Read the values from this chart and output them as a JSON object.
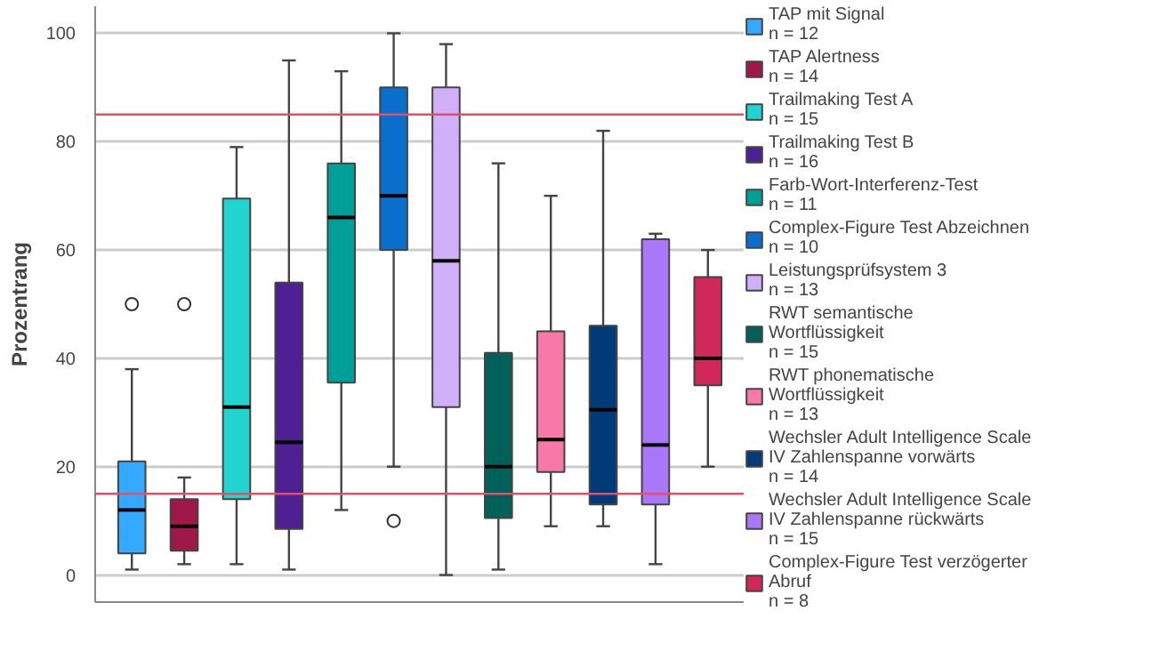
{
  "chart_data": {
    "type": "box",
    "ylabel": "Prozentrang",
    "categories": [
      null,
      null,
      null,
      null,
      null,
      null,
      null,
      null,
      null,
      null,
      null,
      null
    ],
    "series": [
      {
        "name": "TAP mit Signal\nn = 12",
        "color": "#33aaff",
        "boxes": [
          {
            "low": 1,
            "q1": 4,
            "median": 12,
            "q3": 21,
            "high": 38,
            "outliers": [
              50
            ]
          },
          null,
          null,
          null,
          null,
          null,
          null,
          null,
          null,
          null,
          null,
          null
        ]
      },
      {
        "name": "TAP Alertness\nn = 14",
        "color": "#a0184a",
        "boxes": [
          null,
          {
            "low": 2,
            "q1": 4.5,
            "median": 9,
            "q3": 14,
            "high": 18,
            "outliers": [
              50
            ]
          },
          null,
          null,
          null,
          null,
          null,
          null,
          null,
          null,
          null,
          null
        ]
      },
      {
        "name": "Trailmaking Test A\nn = 15",
        "color": "#22d4d0",
        "boxes": [
          null,
          null,
          {
            "low": 2,
            "q1": 14,
            "median": 31,
            "q3": 69.5,
            "high": 79
          },
          null,
          null,
          null,
          null,
          null,
          null,
          null,
          null,
          null
        ]
      },
      {
        "name": "Trailmaking Test B\nn = 16",
        "color": "#4f1f94",
        "boxes": [
          null,
          null,
          null,
          {
            "low": 1,
            "q1": 8.5,
            "median": 24.5,
            "q3": 54,
            "high": 95
          },
          null,
          null,
          null,
          null,
          null,
          null,
          null,
          null
        ]
      },
      {
        "name": "Farb-Wort-Interferenz-Test\nn = 11",
        "color": "#00a099",
        "boxes": [
          null,
          null,
          null,
          null,
          {
            "low": 12,
            "q1": 35.5,
            "median": 66,
            "q3": 76,
            "high": 93
          },
          null,
          null,
          null,
          null,
          null,
          null,
          null
        ]
      },
      {
        "name": "Complex-Figure Test Abzeichnen\nn = 10",
        "color": "#0a6fcc",
        "boxes": [
          null,
          null,
          null,
          null,
          null,
          {
            "low": 20,
            "q1": 60,
            "median": 70,
            "q3": 90,
            "high": 100,
            "outliers": [
              10
            ]
          },
          null,
          null,
          null,
          null,
          null,
          null
        ]
      },
      {
        "name": "Leistungsprüfsystem 3\nn = 13",
        "color": "#d0b0f8",
        "boxes": [
          null,
          null,
          null,
          null,
          null,
          null,
          {
            "low": 0,
            "q1": 31,
            "median": 58,
            "q3": 90,
            "high": 98
          },
          null,
          null,
          null,
          null,
          null
        ]
      },
      {
        "name": "RWT semantische\nWortflüssigkeit\nn = 15",
        "color": "#00605a",
        "boxes": [
          null,
          null,
          null,
          null,
          null,
          null,
          null,
          {
            "low": 1,
            "q1": 10.5,
            "median": 20,
            "q3": 41,
            "high": 76
          },
          null,
          null,
          null,
          null
        ]
      },
      {
        "name": "RWT phonematische\nWortflüssigkeit\nn = 13",
        "color": "#f878a8",
        "boxes": [
          null,
          null,
          null,
          null,
          null,
          null,
          null,
          null,
          {
            "low": 9,
            "q1": 19,
            "median": 25,
            "q3": 45,
            "high": 70
          },
          null,
          null,
          null
        ]
      },
      {
        "name": "Wechsler Adult Intelligence Scale\nIV Zahlenspanne vorwärts\nn = 14",
        "color": "#003a78",
        "boxes": [
          null,
          null,
          null,
          null,
          null,
          null,
          null,
          null,
          null,
          {
            "low": 9,
            "q1": 13,
            "median": 30.5,
            "q3": 46,
            "high": 82
          },
          null,
          null
        ]
      },
      {
        "name": "Wechsler Adult Intelligence Scale\nIV Zahlenspanne rückwärts\nn = 15",
        "color": "#a878f8",
        "boxes": [
          null,
          null,
          null,
          null,
          null,
          null,
          null,
          null,
          null,
          null,
          {
            "low": 2,
            "q1": 13,
            "median": 24,
            "q3": 62,
            "high": 63
          },
          null
        ]
      },
      {
        "name": "Complex-Figure Test verzögerter\nAbruf\nn = 8",
        "color": "#d0285a",
        "boxes": [
          null,
          null,
          null,
          null,
          null,
          null,
          null,
          null,
          null,
          null,
          null,
          {
            "low": 20,
            "q1": 35,
            "median": 40,
            "q3": 55,
            "high": 60
          }
        ]
      }
    ],
    "ylim": [
      -5,
      105
    ],
    "yticks": [
      0,
      20,
      40,
      60,
      80,
      100
    ],
    "grid": "y",
    "tick_labels": "y",
    "legend": "right",
    "ref_lines": [
      {
        "axis": "y",
        "value": 85,
        "color": "#e0506a"
      },
      {
        "axis": "y",
        "value": 15,
        "color": "#e0506a"
      }
    ]
  }
}
